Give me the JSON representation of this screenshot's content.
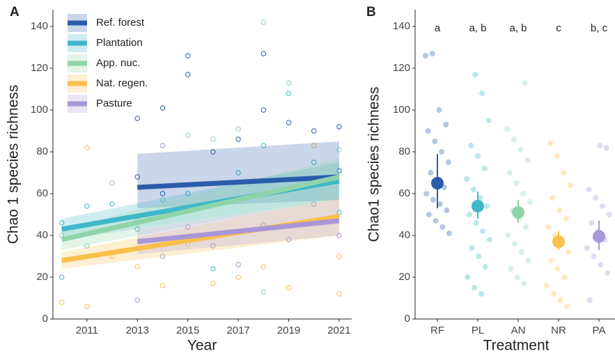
{
  "chart_data": [
    {
      "type": "line",
      "panel": "A",
      "xlabel": "Year",
      "ylabel": "Chao 1 species richness",
      "xlim": [
        2009.65,
        2021.5
      ],
      "xticks": [
        2011,
        2013,
        2015,
        2017,
        2019,
        2021
      ],
      "ylim": [
        0,
        148
      ],
      "yticks": [
        0,
        20,
        40,
        60,
        80,
        100,
        120,
        140
      ],
      "legend": "top-left",
      "series": [
        {
          "name": "Ref. forest",
          "color": "#2a5caa",
          "x": [
            2013,
            2021
          ],
          "values": [
            63,
            68
          ],
          "lower": [
            53,
            57
          ],
          "upper": [
            79,
            85
          ],
          "points_x": [
            2013,
            2013,
            2014,
            2014,
            2015,
            2015,
            2016,
            2017,
            2018,
            2018,
            2019,
            2020,
            2021,
            2021
          ],
          "points_y": [
            68,
            96,
            60,
            101,
            126,
            117,
            80,
            86,
            127,
            100,
            94,
            90,
            71,
            92
          ]
        },
        {
          "name": "Plantation",
          "color": "#3fb8c8",
          "x": [
            2010,
            2021
          ],
          "values": [
            43,
            66
          ],
          "lower": [
            38,
            57
          ],
          "upper": [
            48,
            75
          ],
          "points_x": [
            2010,
            2010,
            2011,
            2012,
            2013,
            2014,
            2015,
            2016,
            2017,
            2018,
            2019,
            2020,
            2021
          ],
          "points_y": [
            20,
            46,
            54,
            55,
            43,
            50,
            60,
            24,
            70,
            83,
            108,
            75,
            51
          ]
        },
        {
          "name": "App. nuc.",
          "color": "#8fd4a8",
          "x": [
            2010,
            2021
          ],
          "values": [
            38,
            68
          ],
          "lower": [
            33,
            58
          ],
          "upper": [
            43,
            77
          ],
          "points_x": [
            2010,
            2011,
            2012,
            2013,
            2014,
            2015,
            2016,
            2017,
            2018,
            2018,
            2019,
            2020,
            2021
          ],
          "points_y": [
            40,
            35,
            65,
            47,
            57,
            88,
            86,
            91,
            142,
            13,
            113,
            65,
            81
          ]
        },
        {
          "name": "Nat. regen.",
          "color": "#f9c04a",
          "x": [
            2010,
            2021
          ],
          "values": [
            28,
            49
          ],
          "lower": [
            24,
            40
          ],
          "upper": [
            32,
            58
          ],
          "points_x": [
            2010,
            2011,
            2011,
            2012,
            2013,
            2014,
            2015,
            2016,
            2017,
            2018,
            2019,
            2020,
            2021,
            2021
          ],
          "points_y": [
            8,
            82,
            6,
            30,
            25,
            16,
            36,
            17,
            20,
            25,
            15,
            83,
            12,
            30
          ]
        },
        {
          "name": "Pasture",
          "color": "#a896d8",
          "x": [
            2013,
            2021
          ],
          "values": [
            37,
            47
          ],
          "lower": [
            31,
            40
          ],
          "upper": [
            43,
            57
          ],
          "points_x": [
            2013,
            2014,
            2014,
            2015,
            2016,
            2017,
            2018,
            2019,
            2020,
            2021
          ],
          "points_y": [
            9,
            83,
            30,
            44,
            35,
            26,
            45,
            38,
            55,
            40
          ]
        }
      ]
    },
    {
      "type": "pointrange",
      "panel": "B",
      "xlabel": "Treatment",
      "ylabel": "Chao1 species richness",
      "ylim": [
        0,
        148
      ],
      "yticks": [
        0,
        20,
        40,
        60,
        80,
        100,
        120,
        140
      ],
      "categories": [
        "RF",
        "PL",
        "AN",
        "NR",
        "PA"
      ],
      "colors": [
        "#2a5caa",
        "#3fb8c8",
        "#8fd4a8",
        "#f9c04a",
        "#a896d8"
      ],
      "letters": [
        "a",
        "a, b",
        "a, b",
        "c",
        "b, c"
      ],
      "values": [
        65,
        54,
        51,
        37,
        39.5
      ],
      "lower": [
        53,
        48,
        46,
        33,
        33
      ],
      "upper": [
        79,
        61,
        57,
        42,
        47
      ],
      "points": [
        [
          126,
          127,
          100,
          93,
          90,
          85,
          80,
          75,
          70,
          66,
          63,
          60,
          57,
          55,
          52,
          50,
          47,
          44,
          41
        ],
        [
          117,
          108,
          95,
          83,
          78,
          72,
          67,
          62,
          58,
          54,
          50,
          46,
          42,
          38,
          34,
          30,
          25,
          20,
          15,
          12
        ],
        [
          113,
          91,
          86,
          81,
          76,
          70,
          65,
          60,
          56,
          52,
          48,
          44,
          40,
          36,
          32,
          28,
          24,
          20,
          17
        ],
        [
          84,
          78,
          70,
          64,
          58,
          52,
          48,
          44,
          40,
          36,
          32,
          28,
          24,
          20,
          16,
          12,
          9,
          6
        ],
        [
          83,
          82,
          62,
          58,
          54,
          50,
          46,
          42,
          38,
          34,
          30,
          26,
          22,
          9
        ]
      ]
    }
  ]
}
